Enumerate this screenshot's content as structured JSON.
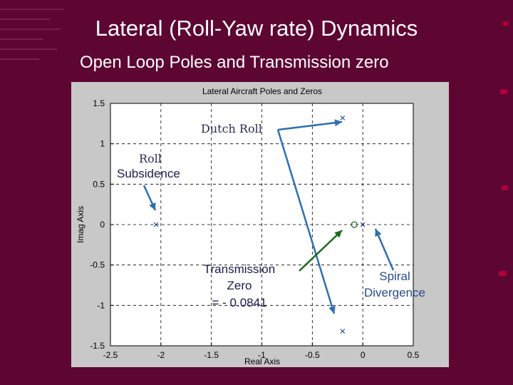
{
  "slide": {
    "title": "Lateral (Roll-Yaw rate) Dynamics",
    "subtitle": "Open Loop Poles and Transmission zero"
  },
  "chart_data": {
    "type": "scatter",
    "title": "Lateral Aircraft Poles and Zeros",
    "xlabel": "Real Axis",
    "ylabel": "Imag Axis",
    "xlim": [
      -2.5,
      0.5
    ],
    "ylim": [
      -1.5,
      1.5
    ],
    "xticks": [
      "-2.5",
      "-2",
      "-1.5",
      "-1",
      "-0.5",
      "0",
      "0.5"
    ],
    "yticks": [
      "1.5",
      "1",
      "0.5",
      "0",
      "-0.5",
      "-1",
      "-1.5"
    ],
    "grid": true,
    "poles": [
      {
        "x": -0.2,
        "y": 1.32
      },
      {
        "x": -0.2,
        "y": -1.32
      },
      {
        "x": -2.05,
        "y": 0
      },
      {
        "x": 0.0,
        "y": 0
      }
    ],
    "zeros": [
      {
        "x": -0.0841,
        "y": 0
      }
    ],
    "annotations": {
      "dutch_roll": "Dutch Roll",
      "roll_line1": "Roll",
      "roll_line2": "Subsidence",
      "tz_line1": "Transmission",
      "tz_line2": "Zero",
      "tz_line3": "= - 0.0841",
      "spiral_line1": "Spiral",
      "spiral_line2": "Divergence"
    },
    "colors": {
      "pole_marker": "#1a3a9a",
      "zero_marker": "#1a6a1a",
      "dutch_roll_arrow": "#2e6fb0",
      "roll_arrow": "#2e6fb0",
      "transmission_arrow": "#1a6a1a",
      "spiral_arrow": "#2e6fb0"
    }
  }
}
